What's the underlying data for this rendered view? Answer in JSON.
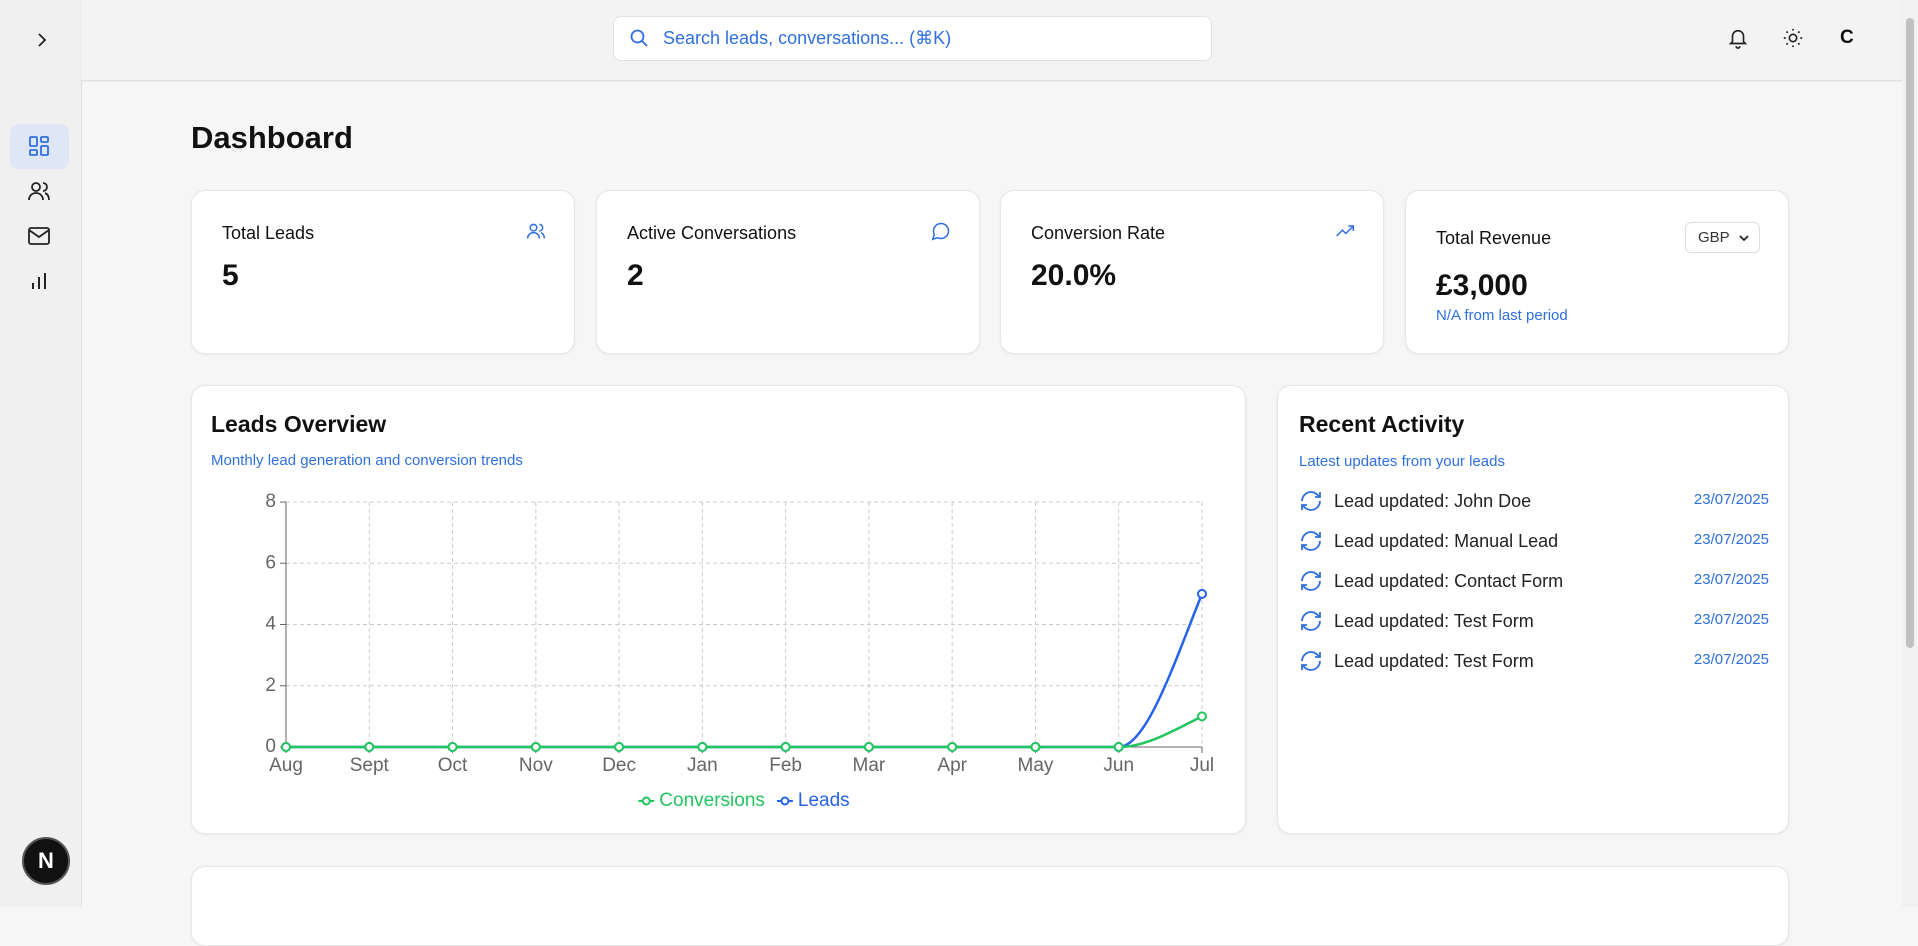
{
  "header": {
    "search_placeholder": "Search leads, conversations... (⌘K)",
    "user_initial": "C",
    "sidebar_badge": "N"
  },
  "page_title": "Dashboard",
  "stats": [
    {
      "label": "Total Leads",
      "value": "5"
    },
    {
      "label": "Active Conversations",
      "value": "2"
    },
    {
      "label": "Conversion Rate",
      "value": "20.0%"
    },
    {
      "label": "Total Revenue",
      "value": "£3,000",
      "currency": "GBP",
      "note": "N/A from last period"
    }
  ],
  "leads_overview": {
    "title": "Leads Overview",
    "subtitle": "Monthly lead generation and conversion trends"
  },
  "chart_data": {
    "type": "line",
    "categories": [
      "Aug",
      "Sept",
      "Oct",
      "Nov",
      "Dec",
      "Jan",
      "Feb",
      "Mar",
      "Apr",
      "May",
      "Jun",
      "Jul"
    ],
    "series": [
      {
        "name": "Conversions",
        "color": "#22c55e",
        "values": [
          0,
          0,
          0,
          0,
          0,
          0,
          0,
          0,
          0,
          0,
          0,
          1
        ]
      },
      {
        "name": "Leads",
        "color": "#2563eb",
        "values": [
          0,
          0,
          0,
          0,
          0,
          0,
          0,
          0,
          0,
          0,
          0,
          5
        ]
      }
    ],
    "ylim": [
      0,
      8
    ],
    "yticks": [
      0,
      2,
      4,
      6,
      8
    ],
    "grid": true,
    "legend": "bottom"
  },
  "recent_activity": {
    "title": "Recent Activity",
    "subtitle": "Latest updates from your leads",
    "items": [
      {
        "text": "Lead updated: John Doe",
        "date": "23/07/2025"
      },
      {
        "text": "Lead updated: Manual Lead",
        "date": "23/07/2025"
      },
      {
        "text": "Lead updated: Contact Form",
        "date": "23/07/2025"
      },
      {
        "text": "Lead updated: Test Form",
        "date": "23/07/2025"
      },
      {
        "text": "Lead updated: Test Form",
        "date": "23/07/2025"
      }
    ]
  }
}
